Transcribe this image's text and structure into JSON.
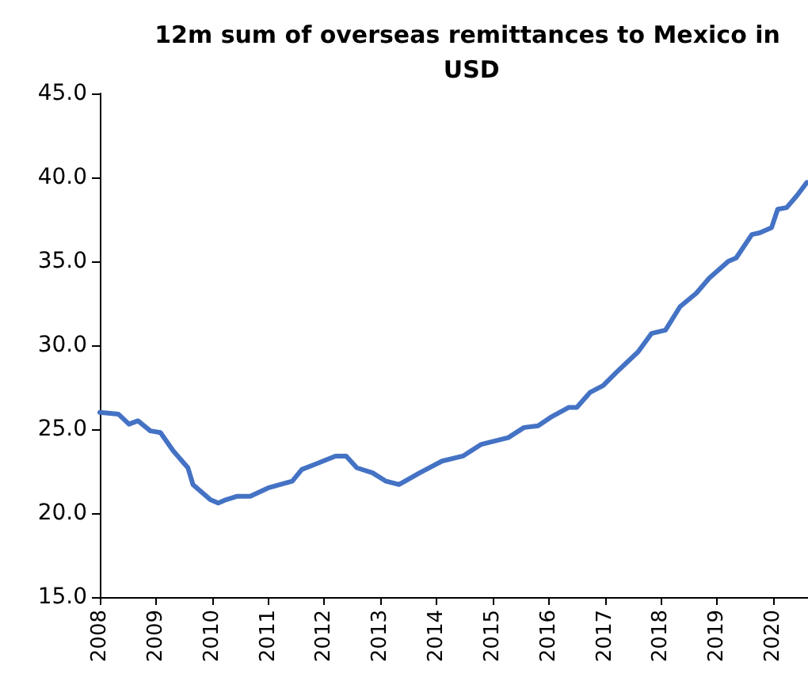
{
  "chart_data": {
    "type": "line",
    "title": "12m sum of overseas remittances to Mexico in USD",
    "x": [
      2008.0,
      2008.33,
      2008.52,
      2008.68,
      2008.9,
      2009.08,
      2009.31,
      2009.57,
      2009.66,
      2009.97,
      2010.11,
      2010.25,
      2010.44,
      2010.68,
      2011.0,
      2011.43,
      2011.6,
      2011.83,
      2012.2,
      2012.39,
      2012.58,
      2012.86,
      2013.1,
      2013.33,
      2013.7,
      2014.1,
      2014.47,
      2014.8,
      2015.28,
      2015.56,
      2015.81,
      2016.03,
      2016.36,
      2016.5,
      2016.74,
      2016.97,
      2017.21,
      2017.59,
      2017.83,
      2018.08,
      2018.34,
      2018.63,
      2018.86,
      2019.2,
      2019.34,
      2019.62,
      2019.76,
      2019.97,
      2020.08,
      2020.24,
      2020.42,
      2020.6
    ],
    "series": [
      {
        "color": "#4472c4",
        "values": [
          26.0,
          25.9,
          25.3,
          25.5,
          24.9,
          24.8,
          23.7,
          22.7,
          21.7,
          20.8,
          20.6,
          20.8,
          21.0,
          21.0,
          21.5,
          21.9,
          22.6,
          22.9,
          23.4,
          23.4,
          22.7,
          22.4,
          21.9,
          21.7,
          22.4,
          23.1,
          23.4,
          24.1,
          24.5,
          25.1,
          25.2,
          25.7,
          26.3,
          26.3,
          27.2,
          27.6,
          28.4,
          29.6,
          30.7,
          30.9,
          32.3,
          33.1,
          34.0,
          35.0,
          35.2,
          36.6,
          36.7,
          37.0,
          38.1,
          38.2,
          38.9,
          39.7
        ]
      }
    ],
    "xlim": [
      2008,
      2020.62
    ],
    "xticks": [
      2008,
      2009,
      2010,
      2011,
      2012,
      2013,
      2014,
      2015,
      2016,
      2017,
      2018,
      2019,
      2020
    ],
    "ylim": [
      15,
      45
    ],
    "yticks": [
      {
        "value": 15,
        "label": "15.0"
      },
      {
        "value": 20,
        "label": "20.0"
      },
      {
        "value": 25,
        "label": "25.0"
      },
      {
        "value": 30,
        "label": "30.0"
      },
      {
        "value": 35,
        "label": "35.0"
      },
      {
        "value": 40,
        "label": "40.0"
      },
      {
        "value": 45,
        "label": "45.0"
      }
    ],
    "grid": false,
    "marker": "none",
    "line_style": "solid"
  }
}
